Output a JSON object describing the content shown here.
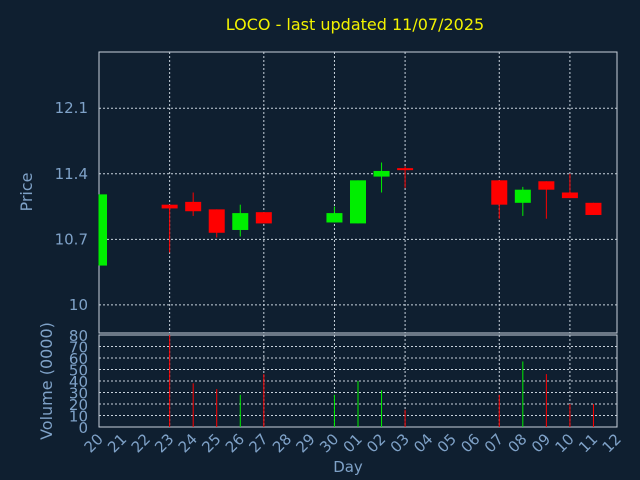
{
  "colors": {
    "background": "#0f1f30",
    "title": "#f2f200",
    "axis_text": "#7fa2c8",
    "grid": "#c8d2dc",
    "up": "#00ee00",
    "down": "#ff0000"
  },
  "chart_data": {
    "type": "candlestick",
    "title": "LOCO - last updated 11/07/2025",
    "xlabel": "Day",
    "price_panel": {
      "ylabel": "Price",
      "ylim": [
        9.7,
        12.7
      ],
      "yticks": [
        10,
        10.7,
        11.4,
        12.1
      ],
      "ytick_labels": [
        "10",
        "10.7",
        "11.4",
        "12.1"
      ],
      "grid": true
    },
    "volume_panel": {
      "ylabel": "Volume (0000)",
      "ylim": [
        0,
        80
      ],
      "yticks": [
        0,
        10,
        20,
        30,
        40,
        50,
        60,
        70,
        80
      ],
      "ytick_labels": [
        "0",
        "10",
        "20",
        "30",
        "40",
        "50",
        "60",
        "70",
        "80"
      ],
      "grid": true
    },
    "x_tick_labels": [
      "20",
      "21",
      "22",
      "23",
      "24",
      "25",
      "26",
      "27",
      "28",
      "29",
      "30",
      "01",
      "02",
      "03",
      "04",
      "05",
      "06",
      "07",
      "08",
      "09",
      "10",
      "11",
      "12"
    ],
    "x_gridlines_at": [
      "20",
      "23",
      "27",
      "30",
      "03",
      "07",
      "10"
    ],
    "candles": [
      {
        "day": "20",
        "open": 10.42,
        "close": 11.18,
        "high": 11.18,
        "low": 10.42,
        "volume": 0
      },
      {
        "day": "23",
        "open": 11.07,
        "close": 11.03,
        "high": 11.07,
        "low": 10.56,
        "volume": 80
      },
      {
        "day": "24",
        "open": 11.1,
        "close": 11.0,
        "high": 11.2,
        "low": 10.95,
        "volume": 38
      },
      {
        "day": "25",
        "open": 11.02,
        "close": 10.77,
        "high": 11.02,
        "low": 10.72,
        "volume": 33
      },
      {
        "day": "26",
        "open": 10.8,
        "close": 10.98,
        "high": 11.07,
        "low": 10.73,
        "volume": 28
      },
      {
        "day": "27",
        "open": 10.99,
        "close": 10.87,
        "high": 10.99,
        "low": 10.87,
        "volume": 46
      },
      {
        "day": "30",
        "open": 10.88,
        "close": 10.98,
        "high": 11.05,
        "low": 10.88,
        "volume": 28
      },
      {
        "day": "01",
        "open": 10.87,
        "close": 11.33,
        "high": 11.33,
        "low": 10.87,
        "volume": 40
      },
      {
        "day": "02",
        "open": 11.37,
        "close": 11.43,
        "high": 11.52,
        "low": 11.2,
        "volume": 32
      },
      {
        "day": "03",
        "open": 11.46,
        "close": 11.44,
        "high": 11.48,
        "low": 11.25,
        "volume": 15
      },
      {
        "day": "07",
        "open": 11.33,
        "close": 11.07,
        "high": 11.33,
        "low": 10.92,
        "volume": 28
      },
      {
        "day": "08",
        "open": 11.09,
        "close": 11.23,
        "high": 11.26,
        "low": 10.95,
        "volume": 57
      },
      {
        "day": "09",
        "open": 11.32,
        "close": 11.23,
        "high": 11.32,
        "low": 10.92,
        "volume": 46
      },
      {
        "day": "10",
        "open": 11.2,
        "close": 11.14,
        "high": 11.4,
        "low": 11.14,
        "volume": 20
      },
      {
        "day": "11",
        "open": 11.09,
        "close": 10.96,
        "high": 11.09,
        "low": 10.96,
        "volume": 20
      }
    ]
  }
}
